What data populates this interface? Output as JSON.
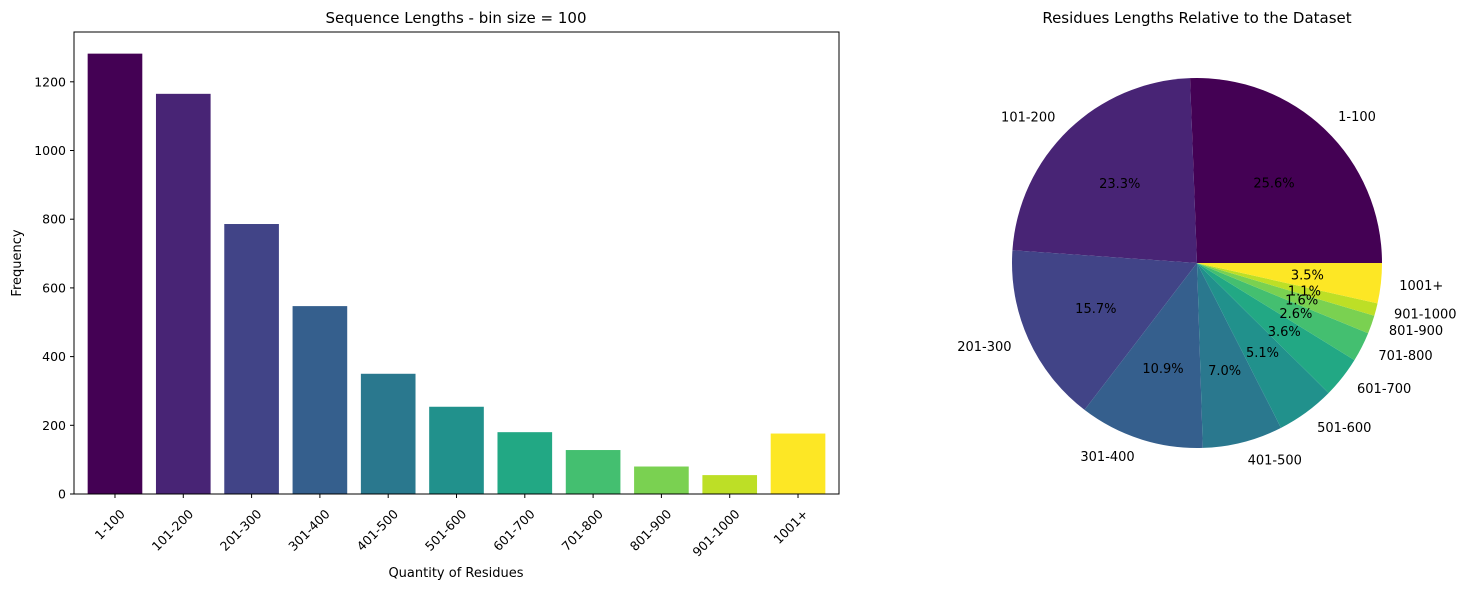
{
  "colors": [
    "#440154",
    "#482475",
    "#414487",
    "#355f8d",
    "#2a788e",
    "#21918c",
    "#22a884",
    "#44bf70",
    "#7ad151",
    "#bddf26",
    "#fde725"
  ],
  "chart_data": [
    {
      "type": "bar",
      "title": "Sequence Lengths - bin size = 100",
      "xlabel": "Quantity of Residues",
      "ylabel": "Frequency",
      "categories": [
        "1-100",
        "101-200",
        "201-300",
        "301-400",
        "401-500",
        "501-600",
        "601-700",
        "701-800",
        "801-900",
        "901-1000",
        "1001+"
      ],
      "values": [
        1282,
        1165,
        786,
        547,
        350,
        254,
        180,
        128,
        80,
        55,
        176
      ],
      "ylim": [
        0,
        1345
      ],
      "yticks": [
        0,
        200,
        400,
        600,
        800,
        1000,
        1200
      ],
      "grid": false,
      "legend": "none"
    },
    {
      "type": "pie",
      "title": "Residues Lengths Relative to the Dataset",
      "labels": [
        "1-100",
        "101-200",
        "201-300",
        "301-400",
        "401-500",
        "501-600",
        "601-700",
        "701-800",
        "801-900",
        "901-1000",
        "1001+"
      ],
      "values": [
        25.6,
        23.3,
        15.7,
        10.9,
        7.0,
        5.1,
        3.6,
        2.6,
        1.6,
        1.1,
        3.5
      ],
      "value_labels": [
        "25.6%",
        "23.3%",
        "15.7%",
        "10.9%",
        "7.0%",
        "5.1%",
        "3.6%",
        "2.6%",
        "1.6%",
        "1.1%",
        "3.5%"
      ],
      "start_angle_deg": 0,
      "direction": "counterclockwise"
    }
  ]
}
